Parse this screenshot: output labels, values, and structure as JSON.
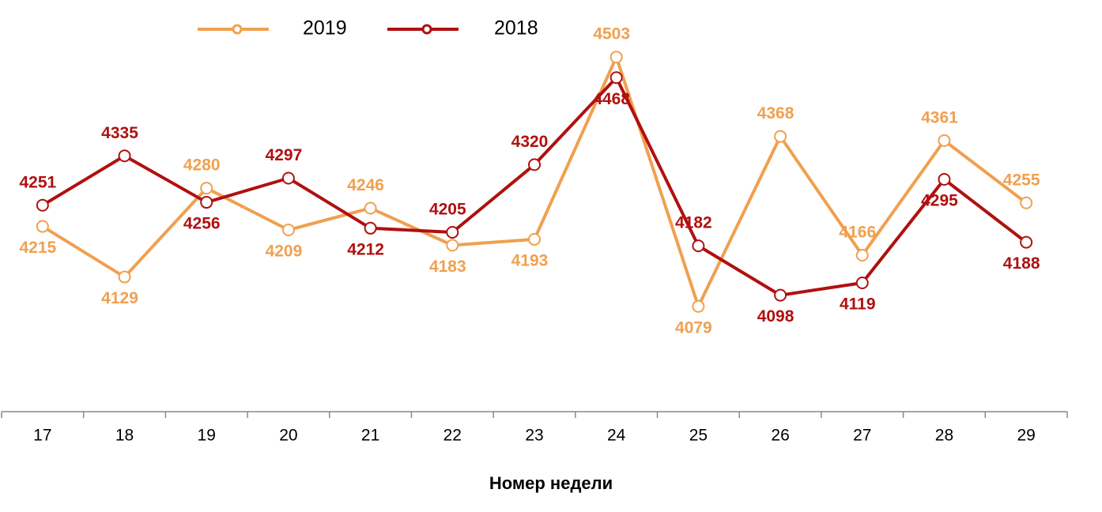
{
  "chart_data": {
    "type": "line",
    "x_label": "Номер недели",
    "categories": [
      "17",
      "18",
      "19",
      "20",
      "21",
      "22",
      "23",
      "24",
      "25",
      "26",
      "27",
      "28",
      "29"
    ],
    "series": [
      {
        "name": "2019",
        "color": "#f0a050",
        "values": [
          4215,
          4129,
          4280,
          4209,
          4246,
          4183,
          4193,
          4503,
          4079,
          4368,
          4166,
          4361,
          4255
        ]
      },
      {
        "name": "2018",
        "color": "#b01010",
        "values": [
          4251,
          4335,
          4256,
          4297,
          4212,
          4205,
          4320,
          4468,
          4182,
          4098,
          4119,
          4295,
          4188
        ]
      }
    ],
    "ylim": [
      3900,
      4600
    ],
    "grid": false,
    "legend": "top"
  }
}
